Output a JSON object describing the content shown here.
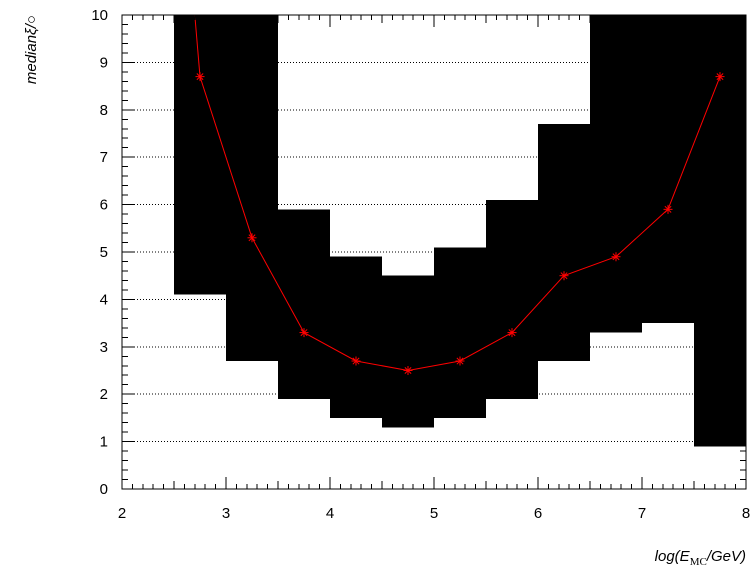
{
  "chart_data": {
    "type": "line",
    "title": "",
    "xlabel": "log(E_MC/GeV)",
    "ylabel": "medianξ/○",
    "xlim": [
      2,
      8
    ],
    "ylim": [
      0,
      10
    ],
    "x_ticks": [
      2,
      3,
      4,
      5,
      6,
      7,
      8
    ],
    "y_ticks": [
      0,
      1,
      2,
      3,
      4,
      5,
      6,
      7,
      8,
      9,
      10
    ],
    "grid": "horizontal dotted",
    "legend": "none",
    "series": [
      {
        "color": "#ff0000",
        "marker": "asterisk",
        "x": [
          2.75,
          3.25,
          3.75,
          4.25,
          4.75,
          5.25,
          5.75,
          6.25,
          6.75,
          7.25,
          7.75
        ],
        "y": [
          8.7,
          5.3,
          3.3,
          2.7,
          2.5,
          2.7,
          3.3,
          4.5,
          4.9,
          5.9,
          8.7
        ]
      }
    ],
    "line_top_exit_x": 2.7,
    "band": {
      "color": "#000000",
      "bins": [
        {
          "x0": 2.5,
          "x1": 3.0,
          "low": 4.1,
          "high": 10
        },
        {
          "x0": 3.0,
          "x1": 3.5,
          "low": 2.7,
          "high": 10
        },
        {
          "x0": 3.5,
          "x1": 4.0,
          "low": 1.9,
          "high": 5.9
        },
        {
          "x0": 4.0,
          "x1": 4.5,
          "low": 1.5,
          "high": 4.9
        },
        {
          "x0": 4.5,
          "x1": 5.0,
          "low": 1.3,
          "high": 4.5
        },
        {
          "x0": 5.0,
          "x1": 5.5,
          "low": 1.5,
          "high": 5.1
        },
        {
          "x0": 5.5,
          "x1": 6.0,
          "low": 1.9,
          "high": 6.1
        },
        {
          "x0": 6.0,
          "x1": 6.5,
          "low": 2.7,
          "high": 7.7
        },
        {
          "x0": 6.5,
          "x1": 7.0,
          "low": 3.3,
          "high": 10
        },
        {
          "x0": 7.0,
          "x1": 7.5,
          "low": 3.5,
          "high": 10
        },
        {
          "x0": 7.5,
          "x1": 8.0,
          "low": 0.9,
          "high": 10
        }
      ]
    }
  }
}
